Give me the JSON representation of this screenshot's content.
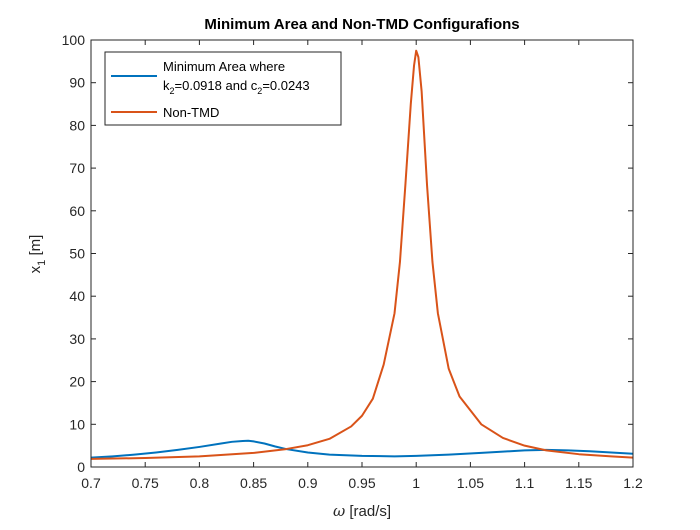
{
  "chart_data": {
    "type": "line",
    "title": "Minimum Area and Non-TMD Configurafions",
    "xlabel": {
      "symbol": "ω",
      "rest": " [rad/s]"
    },
    "ylabel": {
      "base": "x",
      "sub": "1",
      "rest": " [m]"
    },
    "xlim": [
      0.7,
      1.2
    ],
    "ylim": [
      0,
      100
    ],
    "xticks": [
      0.7,
      0.75,
      0.8,
      0.85,
      0.9,
      0.95,
      1,
      1.05,
      1.1,
      1.15,
      1.2
    ],
    "xtick_labels": [
      "0.7",
      "0.75",
      "0.8",
      "0.85",
      "0.9",
      "0.95",
      "1",
      "1.05",
      "1.1",
      "1.15",
      "1.2"
    ],
    "yticks": [
      0,
      10,
      20,
      30,
      40,
      50,
      60,
      70,
      80,
      90,
      100
    ],
    "ytick_labels": [
      "0",
      "10",
      "20",
      "30",
      "40",
      "50",
      "60",
      "70",
      "80",
      "90",
      "100"
    ],
    "grid": false,
    "legend_position": "top-left",
    "legend": [
      {
        "line1": "Minimum Area where",
        "k_base": "k",
        "k_sub": "2",
        "k_val": "=0.0918 and ",
        "c_base": "c",
        "c_sub": "2",
        "c_val": "=0.0243"
      },
      {
        "text": "Non-TMD"
      }
    ],
    "series": [
      {
        "color": "#0072BD",
        "x": [
          0.7,
          0.72,
          0.74,
          0.76,
          0.78,
          0.8,
          0.82,
          0.83,
          0.84,
          0.845,
          0.85,
          0.86,
          0.87,
          0.88,
          0.9,
          0.92,
          0.95,
          0.98,
          1.0,
          1.03,
          1.06,
          1.08,
          1.1,
          1.12,
          1.14,
          1.16,
          1.18,
          1.2
        ],
        "y": [
          2.2,
          2.5,
          2.9,
          3.4,
          4.0,
          4.7,
          5.5,
          5.9,
          6.1,
          6.15,
          6.0,
          5.5,
          4.8,
          4.2,
          3.4,
          2.9,
          2.6,
          2.5,
          2.6,
          2.9,
          3.3,
          3.6,
          3.9,
          4.0,
          3.9,
          3.7,
          3.4,
          3.1
        ]
      },
      {
        "color": "#D95319",
        "x": [
          0.7,
          0.75,
          0.8,
          0.85,
          0.88,
          0.9,
          0.92,
          0.94,
          0.95,
          0.96,
          0.97,
          0.98,
          0.985,
          0.99,
          0.995,
          0.998,
          1.0,
          1.002,
          1.005,
          1.01,
          1.015,
          1.02,
          1.03,
          1.04,
          1.06,
          1.08,
          1.1,
          1.12,
          1.15,
          1.18,
          1.2
        ],
        "y": [
          1.9,
          2.1,
          2.5,
          3.3,
          4.2,
          5.1,
          6.6,
          9.5,
          12.0,
          16.0,
          24.0,
          36.0,
          48.0,
          66.0,
          85.0,
          94.0,
          97.5,
          96.0,
          88.0,
          66.0,
          48.0,
          36.0,
          23.0,
          16.5,
          10.0,
          6.8,
          5.0,
          3.9,
          3.0,
          2.5,
          2.2
        ]
      }
    ]
  }
}
